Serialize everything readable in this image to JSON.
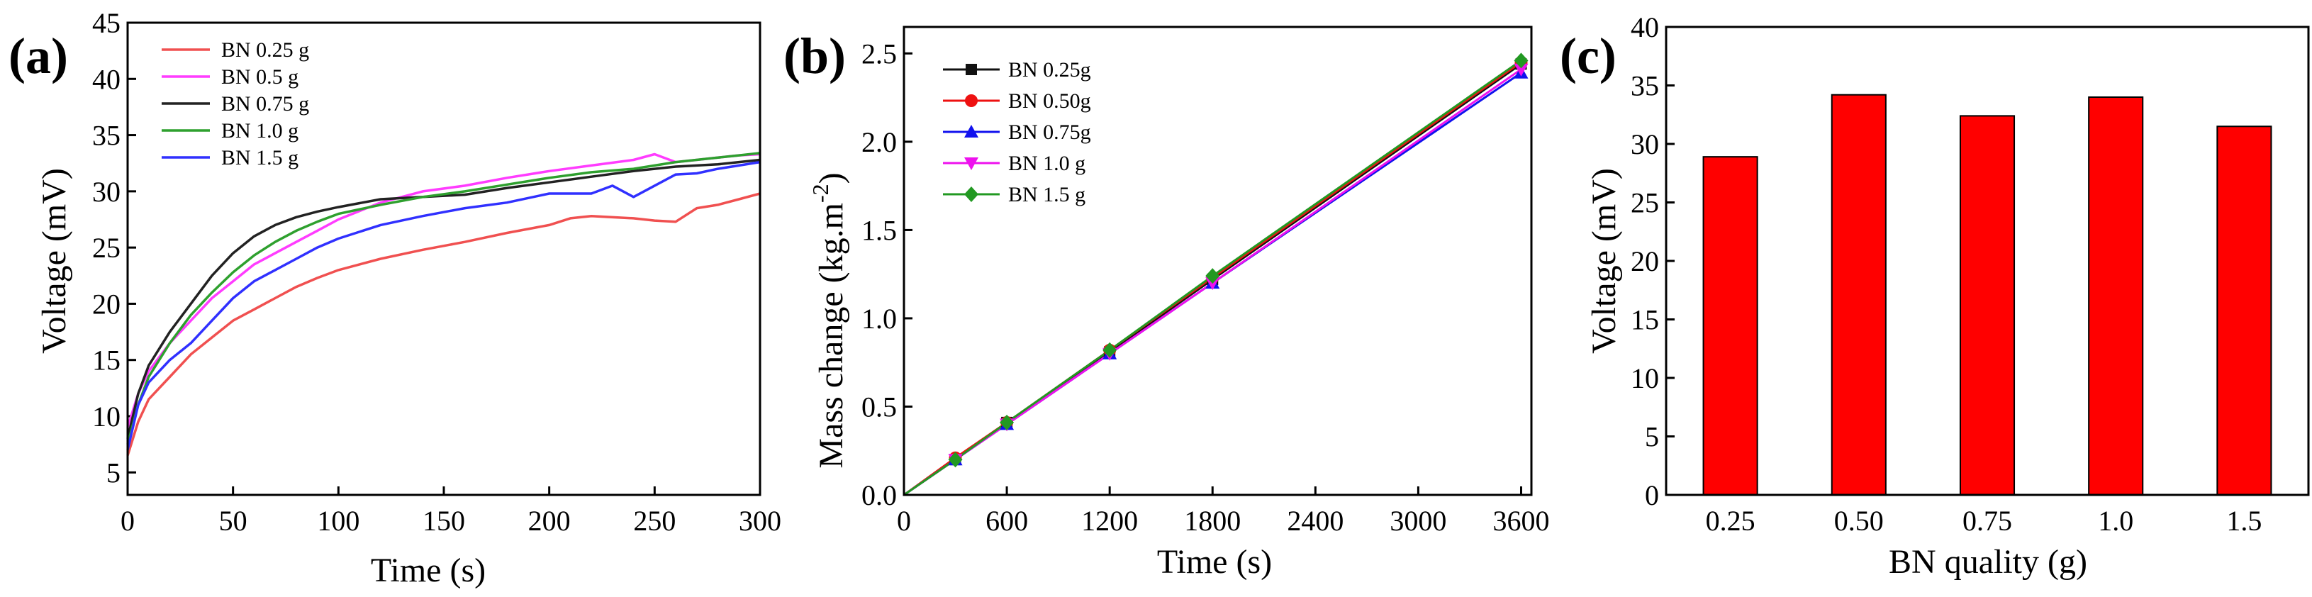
{
  "chart_data": [
    {
      "panel": "(a)",
      "type": "line",
      "xlabel": "Time (s)",
      "ylabel": "Voltage (mV)",
      "xlim": [
        0,
        300
      ],
      "ylim": [
        3,
        45
      ],
      "xticks": [
        0,
        50,
        100,
        150,
        200,
        250,
        300
      ],
      "yticks": [
        5,
        10,
        15,
        20,
        25,
        30,
        35,
        40,
        45
      ],
      "legend_position": "top-left",
      "series": [
        {
          "name": "BN 0.25 g",
          "color": "#f05050",
          "x": [
            0,
            5,
            10,
            20,
            30,
            40,
            50,
            60,
            70,
            80,
            90,
            100,
            120,
            140,
            160,
            180,
            200,
            210,
            220,
            240,
            250,
            260,
            270,
            280,
            290,
            300
          ],
          "y": [
            6.5,
            9.5,
            11.5,
            13.5,
            15.5,
            17,
            18.5,
            19.5,
            20.5,
            21.5,
            22.3,
            23,
            24,
            24.8,
            25.5,
            26.3,
            27,
            27.6,
            27.8,
            27.6,
            27.4,
            27.3,
            28.5,
            28.8,
            29.3,
            29.8
          ]
        },
        {
          "name": "BN  0.5  g",
          "color": "#ff3cff",
          "x": [
            0,
            5,
            10,
            20,
            30,
            40,
            50,
            60,
            70,
            80,
            90,
            100,
            120,
            140,
            160,
            180,
            200,
            220,
            240,
            250,
            260,
            270,
            280,
            290,
            300
          ],
          "y": [
            9,
            12,
            14,
            16.5,
            18.5,
            20.5,
            22,
            23.5,
            24.5,
            25.5,
            26.5,
            27.5,
            29,
            30,
            30.5,
            31.2,
            31.8,
            32.3,
            32.8,
            33.3,
            32.6,
            32.8,
            33,
            33.2,
            33.3
          ]
        },
        {
          "name": "BN 0.75 g",
          "color": "#222222",
          "x": [
            0,
            5,
            10,
            20,
            30,
            40,
            50,
            60,
            70,
            80,
            90,
            100,
            120,
            140,
            160,
            180,
            200,
            220,
            240,
            260,
            280,
            290,
            300
          ],
          "y": [
            8,
            12,
            14.5,
            17.5,
            20,
            22.5,
            24.5,
            26,
            27,
            27.7,
            28.2,
            28.6,
            29.3,
            29.5,
            29.7,
            30.3,
            30.8,
            31.3,
            31.8,
            32.2,
            32.4,
            32.6,
            32.8
          ]
        },
        {
          "name": "BN  1.0  g",
          "color": "#2ea02e",
          "x": [
            0,
            5,
            10,
            20,
            30,
            40,
            50,
            60,
            70,
            80,
            90,
            100,
            120,
            140,
            160,
            180,
            200,
            220,
            240,
            260,
            280,
            290,
            300
          ],
          "y": [
            7.5,
            11,
            13.5,
            16.5,
            19,
            21,
            22.8,
            24.3,
            25.5,
            26.5,
            27.3,
            28,
            28.8,
            29.5,
            30,
            30.6,
            31.2,
            31.7,
            32,
            32.6,
            33,
            33.2,
            33.4
          ]
        },
        {
          "name": "BN  1.5  g",
          "color": "#3030ff",
          "x": [
            0,
            5,
            10,
            20,
            30,
            40,
            50,
            60,
            70,
            80,
            90,
            100,
            120,
            140,
            160,
            180,
            200,
            220,
            230,
            240,
            250,
            260,
            270,
            280,
            290,
            300
          ],
          "y": [
            7,
            11,
            13,
            15,
            16.5,
            18.5,
            20.5,
            22,
            23,
            24,
            25,
            25.8,
            27,
            27.8,
            28.5,
            29,
            29.8,
            29.8,
            30.5,
            29.5,
            30.5,
            31.5,
            31.6,
            32,
            32.3,
            32.6
          ]
        }
      ]
    },
    {
      "panel": "(b)",
      "type": "line",
      "xlabel": "Time (s)",
      "ylabel": "Mass change (kg.m",
      "ylabel_superscript": "-2",
      "ylabel_suffix": ")",
      "xlim": [
        0,
        3660
      ],
      "ylim": [
        0,
        2.65
      ],
      "xticks": [
        0,
        600,
        1200,
        1800,
        2400,
        3000,
        3600
      ],
      "yticks": [
        0.0,
        0.5,
        1.0,
        1.5,
        2.0,
        2.5
      ],
      "ytick_labels": [
        "0.0",
        "0.5",
        "1.0",
        "1.5",
        "2.0",
        "2.5"
      ],
      "legend_position": "top-left",
      "series": [
        {
          "name": "BN 0.25g",
          "color": "#111111",
          "marker": "square",
          "x": [
            0,
            300,
            600,
            1200,
            1800,
            3600
          ],
          "y": [
            0,
            0.2,
            0.41,
            0.81,
            1.22,
            2.44
          ]
        },
        {
          "name": "BN 0.50g",
          "color": "#ee1111",
          "marker": "circle",
          "x": [
            0,
            300,
            600,
            1200,
            1800,
            3600
          ],
          "y": [
            0,
            0.21,
            0.41,
            0.82,
            1.23,
            2.45
          ]
        },
        {
          "name": "BN 0.75g",
          "color": "#1111ee",
          "marker": "triangle-up",
          "x": [
            0,
            300,
            600,
            1200,
            1800,
            3600
          ],
          "y": [
            0,
            0.2,
            0.4,
            0.8,
            1.2,
            2.39
          ]
        },
        {
          "name": "BN  1.0 g",
          "color": "#ee11ee",
          "marker": "triangle-down",
          "x": [
            0,
            300,
            600,
            1200,
            1800,
            3600
          ],
          "y": [
            0,
            0.2,
            0.4,
            0.8,
            1.2,
            2.41
          ]
        },
        {
          "name": "BN  1.5 g",
          "color": "#229922",
          "marker": "diamond",
          "x": [
            0,
            300,
            600,
            1200,
            1800,
            3600
          ],
          "y": [
            0,
            0.2,
            0.41,
            0.82,
            1.24,
            2.46
          ]
        }
      ]
    },
    {
      "panel": "(c)",
      "type": "bar",
      "xlabel": "BN quality (g)",
      "ylabel": "Voltage (mV)",
      "categories": [
        "0.25",
        "0.50",
        "0.75",
        "1.0",
        "1.5"
      ],
      "values": [
        28.9,
        34.2,
        32.4,
        34.0,
        31.5
      ],
      "ylim": [
        0,
        40
      ],
      "yticks": [
        0,
        5,
        10,
        15,
        20,
        25,
        30,
        35,
        40
      ],
      "bar_color": "#ff0000"
    }
  ]
}
